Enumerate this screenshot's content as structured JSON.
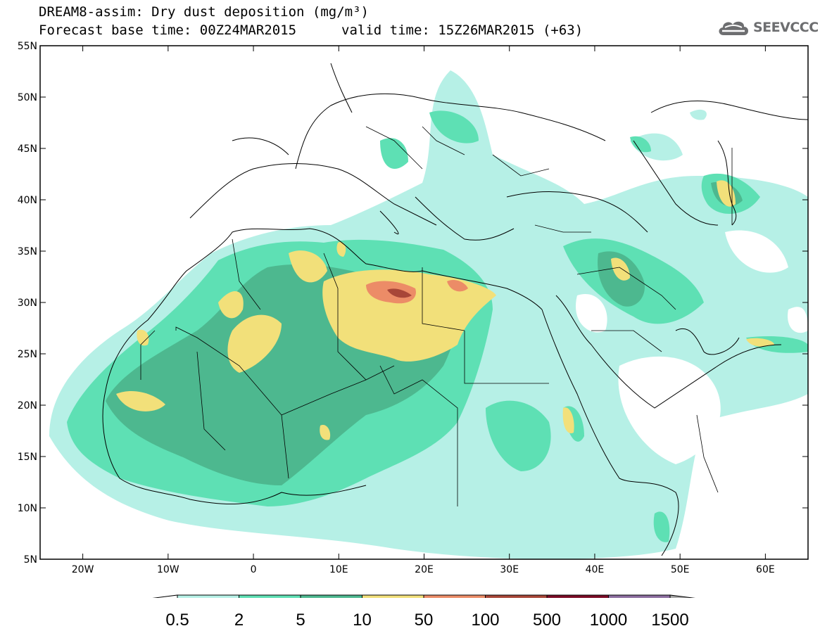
{
  "title": {
    "line1": "DREAM8-assim: Dry dust deposition (mg/m³)",
    "line2a": "Forecast base time: 00Z24MAR2015",
    "line2b": "valid time: 15Z26MAR2015 (+63)"
  },
  "logo": {
    "text": "SEEVCCC",
    "icon": "cloud-logo-icon"
  },
  "map": {
    "lon_range": [
      -25,
      65
    ],
    "lat_range": [
      5,
      55
    ],
    "lat_ticks": [
      "55N",
      "50N",
      "45N",
      "40N",
      "35N",
      "30N",
      "25N",
      "20N",
      "15N",
      "10N",
      "5N"
    ],
    "lon_ticks": [
      "20W",
      "10W",
      "0",
      "10E",
      "20E",
      "30E",
      "40E",
      "50E",
      "60E"
    ]
  },
  "colorbar": {
    "labels": [
      "0.5",
      "2",
      "5",
      "10",
      "50",
      "100",
      "500",
      "1000",
      "1500"
    ],
    "colors": [
      "#b6f0e6",
      "#5ee0b4",
      "#4db88f",
      "#f2e07a",
      "#ec8c67",
      "#a84638",
      "#7a0b26",
      "#8c6ea0"
    ],
    "end_color": "#a5a5a5"
  }
}
